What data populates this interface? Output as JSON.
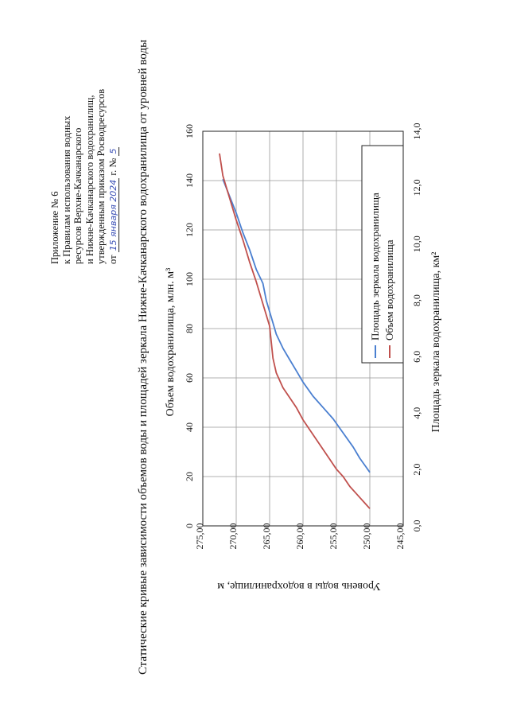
{
  "appendix": {
    "line1": "Приложение № 6",
    "line2": "к Правилам использования водных",
    "line3": "ресурсов Верхне-Качканарского",
    "line4": "и Нижне-Качканарского водохранилищ,",
    "line5": "утвержденным приказом Росводресурсов",
    "line6_prefix": "от",
    "date_hand": "15 января 2024",
    "line6_mid": "г. №",
    "number_hand": "5"
  },
  "chart_data": {
    "type": "line",
    "title": "Статические кривые зависимости объемов воды и площадей зеркала Нижне-Качканарского водохранилища от уровней воды",
    "level_axis_label": "Уровень воды в водохранилище, м",
    "volume_axis_label": "Объем водохранилища, млн. м³",
    "area_axis_label": "Площадь зеркала водохранилища, км²",
    "level_range": [
      245,
      275
    ],
    "volume_range": [
      0,
      160
    ],
    "area_range": [
      0,
      14
    ],
    "level_ticks": [
      "245,00",
      "250,00",
      "255,00",
      "260,00",
      "265,00",
      "270,00",
      "275,00"
    ],
    "volume_ticks": [
      "0",
      "20",
      "40",
      "60",
      "80",
      "100",
      "120",
      "140",
      "160"
    ],
    "area_ticks": [
      "0,0",
      "2,0",
      "4,0",
      "6,0",
      "8,0",
      "10,0",
      "12,0",
      "14,0"
    ],
    "grid": true,
    "legend_position": "top-right",
    "colors": {
      "area": "#4a7fd0",
      "volume": "#c0504d"
    },
    "series": [
      {
        "name": "Площадь зеркала водохранилища",
        "axis": "area",
        "level": [
          250,
          250.6,
          251.5,
          252.5,
          254,
          255.5,
          257,
          258.5,
          260,
          261,
          262,
          263,
          264,
          264.5,
          265,
          265.5,
          266,
          267,
          268,
          269,
          270,
          271,
          272
        ],
        "value": [
          1.9,
          2.1,
          2.4,
          2.8,
          3.3,
          3.8,
          4.2,
          4.6,
          5.1,
          5.5,
          5.9,
          6.3,
          6.8,
          7.2,
          7.6,
          8.0,
          8.6,
          9.1,
          9.8,
          10.4,
          11.1,
          11.7,
          12.3
        ]
      },
      {
        "name": "Объем водохранилища",
        "axis": "volume",
        "level": [
          250,
          251,
          252,
          253,
          254,
          255,
          256,
          257,
          258,
          259,
          260,
          261,
          262,
          263,
          264,
          264.5,
          265,
          266,
          267,
          268,
          269,
          270,
          271,
          272,
          272.5
        ],
        "value": [
          7,
          10,
          13,
          16,
          20,
          23,
          27,
          31,
          35,
          39,
          43,
          48,
          52,
          56,
          62,
          68,
          81,
          90,
          99,
          107,
          116,
          124,
          133,
          142,
          151
        ]
      }
    ]
  }
}
